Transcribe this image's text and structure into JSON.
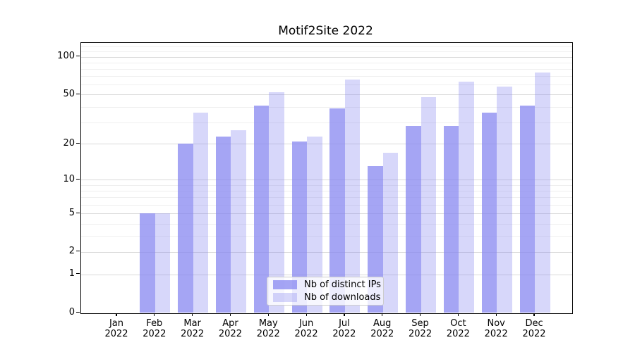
{
  "title": "Motif2Site 2022",
  "chart_data": {
    "type": "bar",
    "title": "Motif2Site 2022",
    "categories": [
      "Jan 2022",
      "Feb 2022",
      "Mar 2022",
      "Apr 2022",
      "May 2022",
      "Jun 2022",
      "Jul 2022",
      "Aug 2022",
      "Sep 2022",
      "Oct 2022",
      "Nov 2022",
      "Dec 2022"
    ],
    "series": [
      {
        "name": "Nb of distinct IPs",
        "color_hex": "#a6a6f3",
        "fill_rgba": "rgba(130,130,240,0.72)",
        "values": [
          0,
          5,
          20,
          23,
          41,
          21,
          39,
          13,
          28,
          28,
          36,
          41
        ]
      },
      {
        "name": "Nb of downloads",
        "color_hex": "#d8d8fa",
        "fill_rgba": "rgba(130,130,240,0.32)",
        "values": [
          0,
          5,
          36,
          26,
          52,
          23,
          66,
          17,
          48,
          63,
          58,
          75
        ]
      }
    ],
    "yscale": "log1p",
    "yticks": [
      0,
      1,
      2,
      5,
      10,
      20,
      50,
      100
    ],
    "minor_gridlines": [
      3,
      4,
      6,
      7,
      8,
      9,
      30,
      40,
      60,
      70,
      80,
      90,
      110,
      120
    ],
    "ylim": [
      0,
      127
    ],
    "grid": true,
    "legend_position": "lower center",
    "grid_major_color": "#d9d9d9",
    "grid_minor_color": "#efefef"
  }
}
